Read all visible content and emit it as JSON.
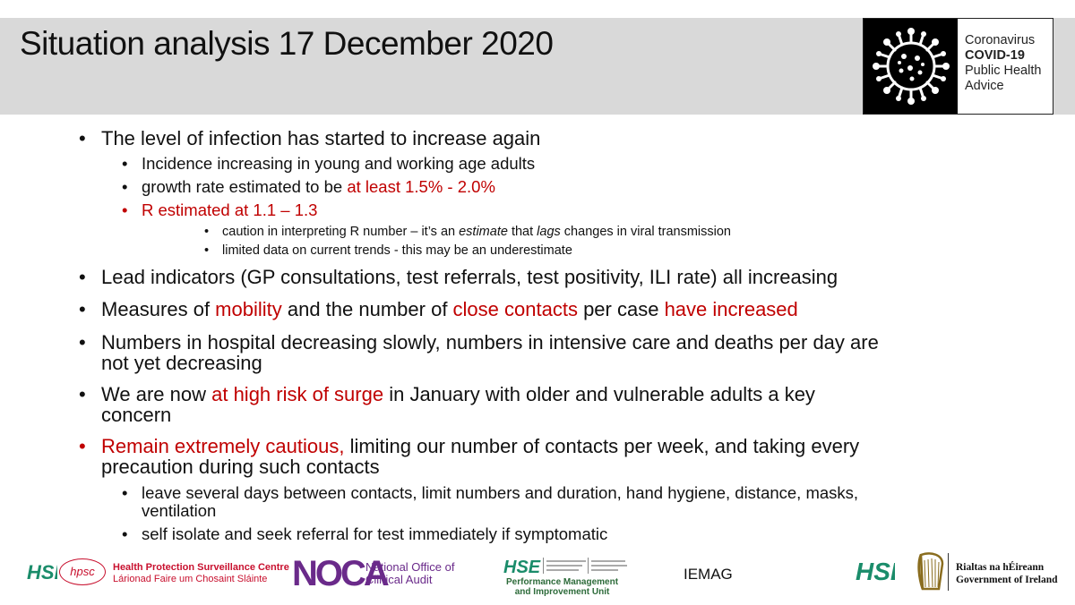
{
  "title": "Situation analysis 17 December 2020",
  "badge": {
    "line1": "Coronavirus",
    "line2": "COVID-19",
    "line3": "Public Health",
    "line4": "Advice"
  },
  "bullets": {
    "b1": "The level of infection has started to increase again",
    "b1_1": "Incidence increasing in young and working age adults",
    "b1_2a": "growth rate estimated to be ",
    "b1_2b": "at least 1.5% - 2.0%",
    "b1_3": "R estimated at 1.1 – 1.3",
    "b1_3_1a": "caution in interpreting R number – it’s an ",
    "b1_3_1b": "estimate",
    "b1_3_1c": " that ",
    "b1_3_1d": "lags",
    "b1_3_1e": " changes in viral transmission",
    "b1_3_2": "limited data on current trends - this may be an underestimate",
    "b2": "Lead indicators (GP consultations, test referrals, test positivity, ILI rate) all increasing",
    "b3a": "Measures of ",
    "b3b": "mobility",
    "b3c": " and the number of ",
    "b3d": "close contacts",
    "b3e": " per case ",
    "b3f": "have increased",
    "b4_line1": "Numbers in hospital decreasing slowly, numbers in intensive care and deaths per day are",
    "b4_line2": "not yet decreasing",
    "b5a": "We are now ",
    "b5b": "at high risk of surge",
    "b5c": " in January with older and vulnerable adults a key",
    "b5_line2": "concern",
    "b6a": "Remain extremely cautious,",
    "b6b": " limiting our number of contacts per week, and taking every",
    "b6_line2": "precaution during such contacts",
    "b6_1_line1": "leave several days between contacts, limit numbers and duration, hand hygiene, distance, masks,",
    "b6_1_line2": "ventilation",
    "b6_2": "self isolate and seek referral for test immediately if symptomatic"
  },
  "footer": {
    "hse": "HSE",
    "hpsc_mark": "hpsc",
    "hpsc_line1": "Health Protection Surveillance Centre",
    "hpsc_line2": "Lárionad Faire um Chosaint Sláinte",
    "noca_mark": "NOCA",
    "noca_line1": "National Office of",
    "noca_line2": "Clinical Audit",
    "pmiu_line1": "Performance Management",
    "pmiu_line2": "and Improvement Unit",
    "iemag": "IEMAG",
    "gov_line1": "Rialtas na hÉireann",
    "gov_line2": "Government of Ireland"
  },
  "colors": {
    "accent_red": "#c00000",
    "header_gray": "#d9d9d9"
  }
}
